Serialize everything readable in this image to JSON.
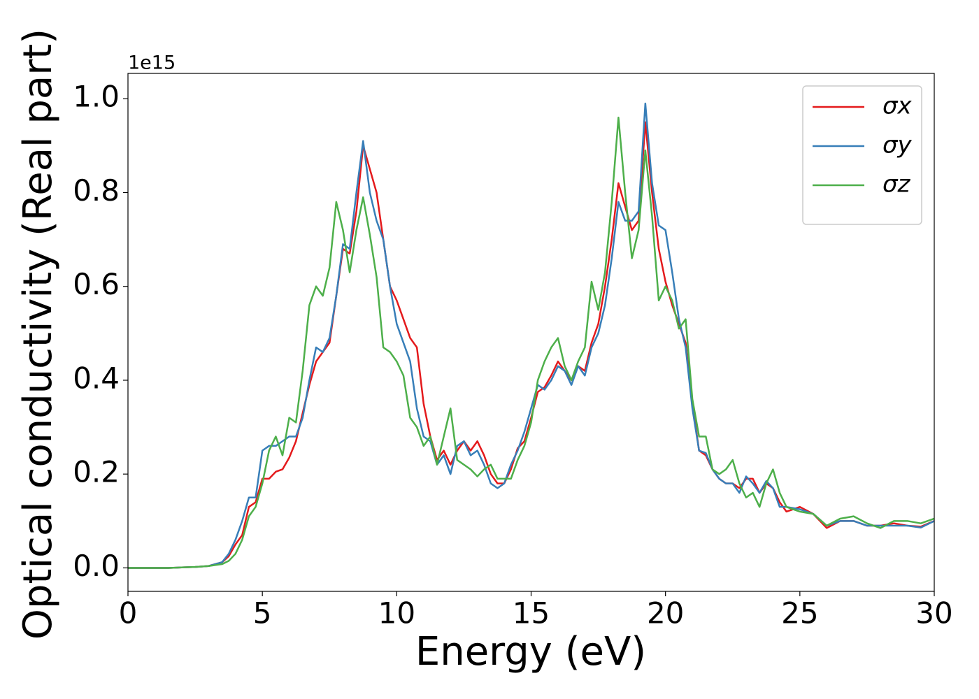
{
  "chart_data": {
    "type": "line",
    "xlabel": "Energy (eV)",
    "ylabel": "Optical conductivity (Real part)",
    "offset_label": "1e15",
    "x": [
      0,
      0.5,
      1,
      1.5,
      2,
      2.5,
      3,
      3.5,
      3.75,
      4,
      4.25,
      4.5,
      4.75,
      5,
      5.25,
      5.5,
      5.75,
      6,
      6.25,
      6.5,
      6.75,
      7,
      7.25,
      7.5,
      7.75,
      8,
      8.25,
      8.5,
      8.75,
      9,
      9.25,
      9.5,
      9.75,
      10,
      10.25,
      10.5,
      10.75,
      11,
      11.25,
      11.5,
      11.75,
      12,
      12.25,
      12.5,
      12.75,
      13,
      13.25,
      13.5,
      13.75,
      14,
      14.25,
      14.5,
      14.75,
      15,
      15.25,
      15.5,
      15.75,
      16,
      16.25,
      16.5,
      16.75,
      17,
      17.25,
      17.5,
      17.75,
      18,
      18.25,
      18.5,
      18.75,
      19,
      19.25,
      19.5,
      19.75,
      20,
      20.25,
      20.5,
      20.75,
      21,
      21.25,
      21.5,
      21.75,
      22,
      22.25,
      22.5,
      22.75,
      23,
      23.25,
      23.5,
      23.75,
      24,
      24.25,
      24.5,
      25,
      25.5,
      26,
      26.5,
      27,
      27.5,
      28,
      28.5,
      29,
      29.5,
      30
    ],
    "series": [
      {
        "name": "σx",
        "color": "#e41a1c",
        "values": [
          0,
          0,
          0,
          0,
          0.001,
          0.002,
          0.004,
          0.012,
          0.025,
          0.05,
          0.07,
          0.13,
          0.14,
          0.19,
          0.19,
          0.205,
          0.21,
          0.235,
          0.27,
          0.33,
          0.39,
          0.44,
          0.46,
          0.48,
          0.58,
          0.68,
          0.67,
          0.76,
          0.9,
          0.85,
          0.8,
          0.7,
          0.6,
          0.57,
          0.53,
          0.49,
          0.47,
          0.35,
          0.28,
          0.23,
          0.25,
          0.22,
          0.25,
          0.27,
          0.25,
          0.27,
          0.24,
          0.2,
          0.18,
          0.18,
          0.21,
          0.255,
          0.27,
          0.32,
          0.375,
          0.385,
          0.41,
          0.44,
          0.42,
          0.4,
          0.43,
          0.42,
          0.48,
          0.52,
          0.6,
          0.7,
          0.82,
          0.77,
          0.72,
          0.74,
          0.95,
          0.8,
          0.68,
          0.61,
          0.56,
          0.52,
          0.48,
          0.35,
          0.25,
          0.24,
          0.21,
          0.19,
          0.18,
          0.18,
          0.17,
          0.19,
          0.19,
          0.16,
          0.18,
          0.17,
          0.14,
          0.12,
          0.13,
          0.115,
          0.085,
          0.1,
          0.1,
          0.09,
          0.09,
          0.095,
          0.09,
          0.088,
          0.1
        ]
      },
      {
        "name": "σy",
        "color": "#377eb8",
        "values": [
          0,
          0,
          0,
          0,
          0.001,
          0.002,
          0.004,
          0.012,
          0.03,
          0.06,
          0.1,
          0.15,
          0.15,
          0.25,
          0.26,
          0.26,
          0.27,
          0.28,
          0.28,
          0.32,
          0.4,
          0.47,
          0.46,
          0.49,
          0.58,
          0.69,
          0.68,
          0.8,
          0.91,
          0.8,
          0.74,
          0.7,
          0.6,
          0.52,
          0.48,
          0.44,
          0.34,
          0.28,
          0.27,
          0.22,
          0.24,
          0.2,
          0.26,
          0.27,
          0.24,
          0.25,
          0.22,
          0.18,
          0.17,
          0.18,
          0.22,
          0.25,
          0.29,
          0.34,
          0.39,
          0.38,
          0.4,
          0.43,
          0.42,
          0.39,
          0.43,
          0.41,
          0.47,
          0.5,
          0.56,
          0.66,
          0.78,
          0.74,
          0.74,
          0.76,
          0.99,
          0.82,
          0.73,
          0.72,
          0.63,
          0.53,
          0.47,
          0.34,
          0.25,
          0.245,
          0.21,
          0.19,
          0.18,
          0.18,
          0.16,
          0.195,
          0.18,
          0.16,
          0.185,
          0.17,
          0.13,
          0.13,
          0.125,
          0.115,
          0.09,
          0.1,
          0.1,
          0.09,
          0.09,
          0.09,
          0.09,
          0.086,
          0.1
        ]
      },
      {
        "name": "σz",
        "color": "#4daf4a",
        "values": [
          0,
          0,
          0,
          0,
          0.001,
          0.002,
          0.004,
          0.008,
          0.015,
          0.03,
          0.06,
          0.11,
          0.13,
          0.18,
          0.25,
          0.28,
          0.24,
          0.32,
          0.31,
          0.42,
          0.56,
          0.6,
          0.58,
          0.64,
          0.78,
          0.72,
          0.63,
          0.72,
          0.79,
          0.71,
          0.62,
          0.47,
          0.46,
          0.44,
          0.41,
          0.32,
          0.3,
          0.26,
          0.28,
          0.22,
          0.28,
          0.34,
          0.23,
          0.22,
          0.21,
          0.195,
          0.21,
          0.22,
          0.19,
          0.19,
          0.19,
          0.23,
          0.26,
          0.31,
          0.4,
          0.44,
          0.47,
          0.49,
          0.43,
          0.4,
          0.44,
          0.47,
          0.61,
          0.55,
          0.63,
          0.78,
          0.96,
          0.8,
          0.66,
          0.72,
          0.89,
          0.75,
          0.57,
          0.6,
          0.57,
          0.51,
          0.53,
          0.36,
          0.28,
          0.28,
          0.21,
          0.2,
          0.21,
          0.23,
          0.18,
          0.15,
          0.16,
          0.13,
          0.18,
          0.21,
          0.16,
          0.13,
          0.12,
          0.115,
          0.09,
          0.105,
          0.11,
          0.095,
          0.085,
          0.1,
          0.1,
          0.095,
          0.105
        ]
      }
    ],
    "xlim": [
      0,
      30
    ],
    "xticks": [
      0,
      5,
      10,
      15,
      20,
      25,
      30
    ],
    "ylim": [
      -0.05,
      1.054
    ],
    "yticks": [
      {
        "value": 0,
        "label": "0.0"
      },
      0.2,
      0.4,
      0.6,
      0.8,
      {
        "value": 1,
        "label": "1.0"
      }
    ],
    "legend": "upper right",
    "grid": false
  }
}
